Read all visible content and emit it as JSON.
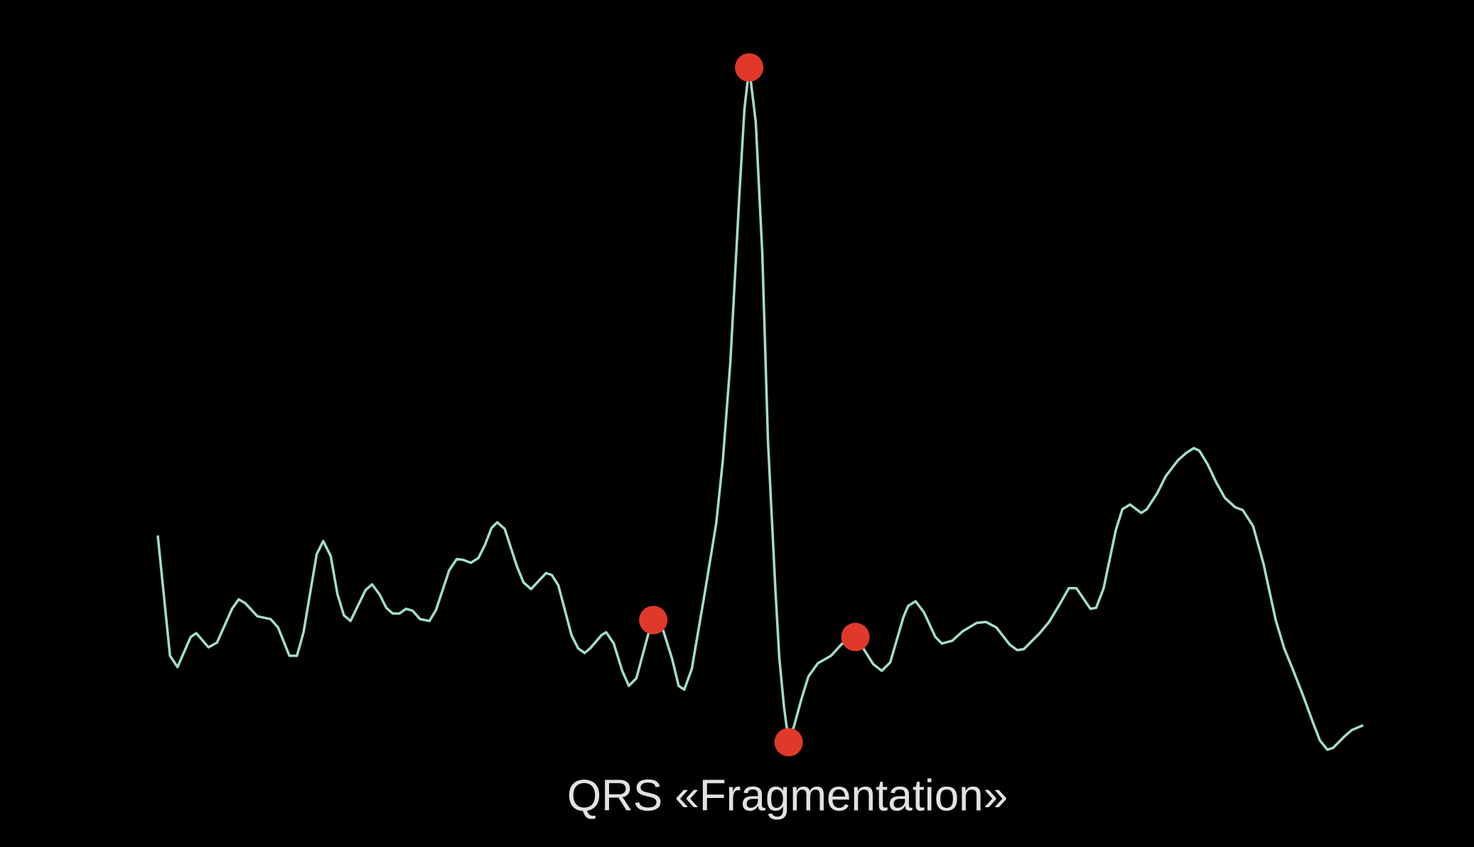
{
  "chart_data": {
    "type": "line",
    "title": "QRS «Fragmentation»",
    "xlim": [
      0,
      1282
    ],
    "ylim": [
      -1,
      7
    ],
    "series": [
      {
        "color": "#a3dccf",
        "x": [
          0,
          13,
          21,
          35,
          41,
          54,
          63,
          79,
          86,
          93,
          106,
          120,
          128,
          140,
          148,
          155,
          169,
          176,
          184,
          191,
          198,
          205,
          221,
          228,
          236,
          243,
          250,
          257,
          264,
          271,
          279,
          289,
          296,
          310,
          318,
          325,
          333,
          341,
          348,
          355,
          361,
          369,
          382,
          389,
          397,
          413,
          419,
          426,
          440,
          447,
          454,
          460,
          472,
          477,
          485,
          494,
          501,
          509,
          523,
          529,
          536,
          547,
          554,
          560,
          568,
          582,
          594,
          601,
          609,
          619,
          624,
          629,
          636,
          643,
          649,
          657,
          661,
          666,
          671,
          677,
          684,
          692,
          702,
          716,
          727,
          735,
          742,
          749,
          761,
          770,
          779,
          793,
          798,
          806,
          815,
          827,
          834,
          845,
          856,
          871,
          881,
          892,
          906,
          914,
          921,
          938,
          948,
          960,
          969,
          977,
          992,
          998,
          1006,
          1019,
          1026,
          1034,
          1046,
          1052,
          1063,
          1072,
          1085,
          1094,
          1102,
          1108,
          1117,
          1126,
          1135,
          1146,
          1154,
          1165,
          1176,
          1189,
          1198,
          1207,
          1218,
          1229,
          1236,
          1244,
          1250,
          1262,
          1270,
          1282
        ],
        "values": [
          1.4,
          0.12,
          0,
          0.32,
          0.36,
          0.21,
          0.26,
          0.62,
          0.72,
          0.68,
          0.54,
          0.51,
          0.42,
          0.12,
          0.12,
          0.37,
          1.2,
          1.34,
          1.18,
          0.78,
          0.55,
          0.49,
          0.82,
          0.88,
          0.77,
          0.63,
          0.57,
          0.57,
          0.62,
          0.6,
          0.51,
          0.49,
          0.61,
          1.03,
          1.15,
          1.14,
          1.11,
          1.16,
          1.3,
          1.48,
          1.54,
          1.47,
          1.07,
          0.9,
          0.83,
          1,
          0.98,
          0.87,
          0.34,
          0.2,
          0.15,
          0.2,
          0.34,
          0.37,
          0.25,
          -0.04,
          -0.2,
          -0.12,
          0.4,
          0.5,
          0.44,
          0.09,
          -0.2,
          -0.24,
          -0.02,
          0.8,
          1.53,
          2.2,
          3.25,
          5.1,
          5.94,
          6.38,
          5.8,
          4.4,
          2.4,
          0.8,
          0.1,
          -0.42,
          -0.8,
          -0.62,
          -0.36,
          -0.1,
          0.04,
          0.12,
          0.24,
          0.31,
          0.32,
          0.22,
          0.03,
          -0.04,
          0.05,
          0.53,
          0.65,
          0.7,
          0.58,
          0.32,
          0.25,
          0.28,
          0.38,
          0.47,
          0.48,
          0.42,
          0.24,
          0.18,
          0.19,
          0.36,
          0.48,
          0.68,
          0.84,
          0.84,
          0.62,
          0.63,
          0.84,
          1.46,
          1.68,
          1.73,
          1.64,
          1.68,
          1.85,
          2.03,
          2.2,
          2.28,
          2.33,
          2.3,
          2.15,
          1.96,
          1.8,
          1.7,
          1.67,
          1.5,
          1.1,
          0.5,
          0.2,
          -0.02,
          -0.3,
          -0.6,
          -0.78,
          -0.88,
          -0.86,
          -0.74,
          -0.67,
          -0.62
        ]
      },
      {
        "type": "scatter",
        "color": "#e0392b",
        "x": [
          527,
          629,
          671,
          742
        ],
        "values": [
          0.5,
          6.38,
          -0.8,
          0.32
        ]
      }
    ]
  }
}
